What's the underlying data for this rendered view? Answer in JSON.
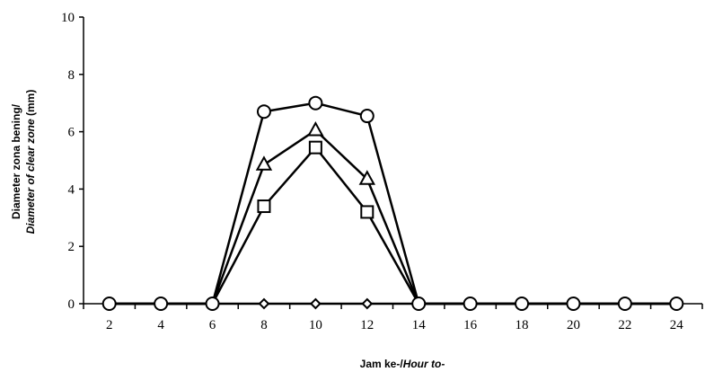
{
  "chart_data": {
    "type": "line",
    "title": "",
    "xlabel": {
      "plain": "Jam ke-/",
      "italic": "Hour to-"
    },
    "ylabel": {
      "line1": "Diameter zona bening/",
      "line2_italic": "Diameter of clear zone ",
      "line2_plain": "(mm)"
    },
    "x": [
      2,
      4,
      6,
      8,
      10,
      12,
      14,
      16,
      18,
      20,
      22,
      24
    ],
    "xlim": [
      1,
      25
    ],
    "ylim": [
      0,
      10
    ],
    "yticks": [
      0,
      2,
      4,
      6,
      8,
      10
    ],
    "grid": false,
    "legend": "none",
    "series": [
      {
        "marker": "circle",
        "values": [
          0,
          0,
          0,
          6.7,
          7.0,
          6.55,
          0,
          0,
          0,
          0,
          0,
          0
        ]
      },
      {
        "marker": "triangle",
        "values": [
          0,
          0,
          0,
          4.85,
          6.05,
          4.35,
          0,
          0,
          0,
          0,
          0,
          0
        ]
      },
      {
        "marker": "square",
        "values": [
          0,
          0,
          0,
          3.4,
          5.45,
          3.2,
          0,
          0,
          0,
          0,
          0,
          0
        ]
      },
      {
        "marker": "diamond",
        "values": [
          0,
          0,
          0,
          0,
          0,
          0,
          0,
          0,
          0,
          0,
          0,
          0
        ]
      }
    ]
  }
}
